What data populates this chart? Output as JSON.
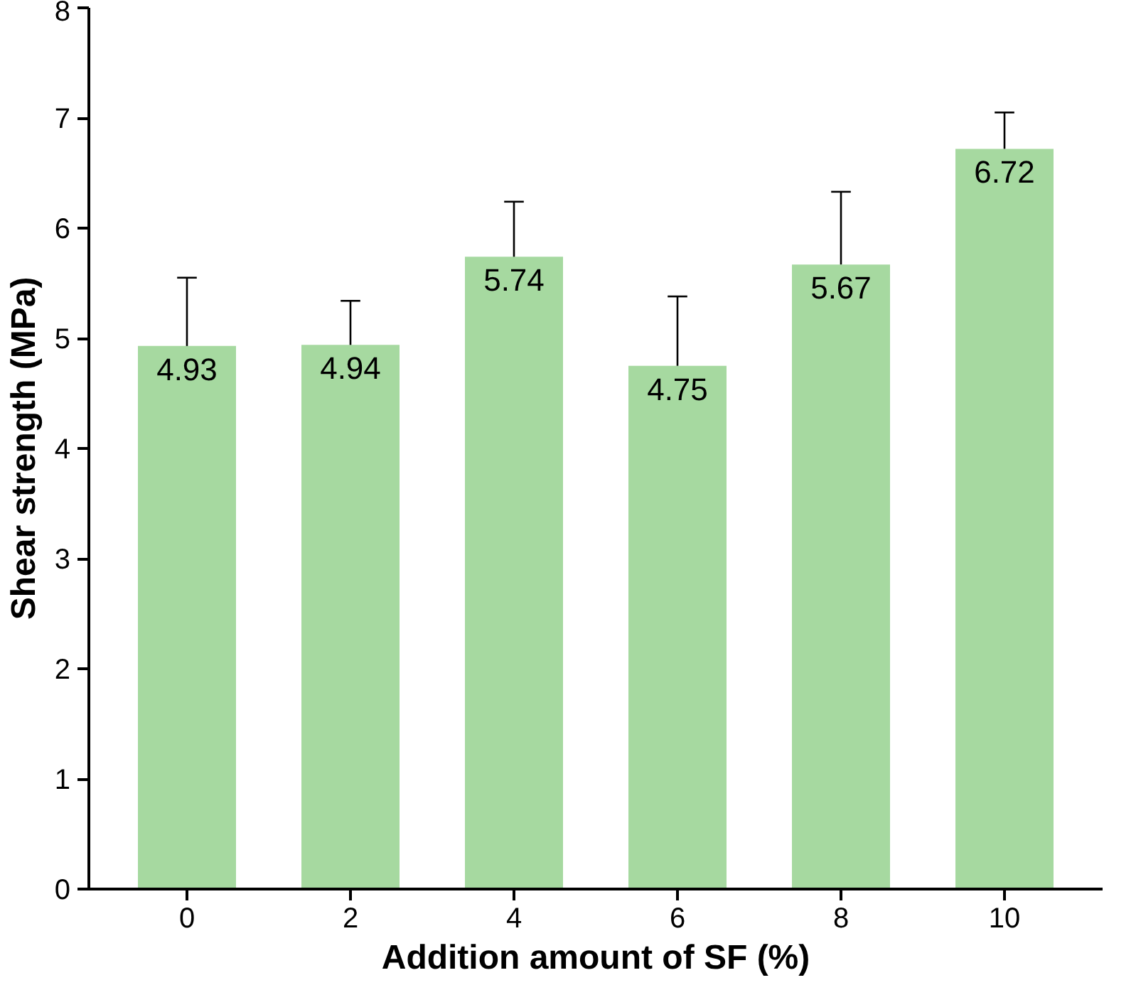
{
  "chart_data": {
    "type": "bar",
    "xlabel": "Addition amount of SF (%)",
    "ylabel": "Shear strength (MPa)",
    "categories": [
      "0",
      "2",
      "4",
      "6",
      "8",
      "10"
    ],
    "values": [
      4.93,
      4.94,
      5.74,
      4.75,
      5.67,
      6.72
    ],
    "errors": [
      [
        4.93,
        5.55
      ],
      [
        4.94,
        5.34
      ],
      [
        5.74,
        6.24
      ],
      [
        4.75,
        5.38
      ],
      [
        5.67,
        6.33
      ],
      [
        6.72,
        7.05
      ]
    ],
    "color": "#a6d9a0",
    "data_labels": true,
    "grid": false,
    "ylim": [
      0,
      8
    ],
    "yticks": [
      0,
      1,
      2,
      3,
      4,
      5,
      6,
      7,
      8
    ]
  }
}
